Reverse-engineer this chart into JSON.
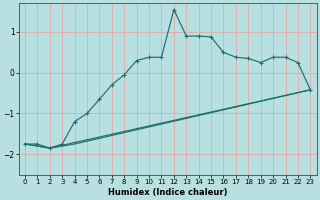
{
  "xlabel": "Humidex (Indice chaleur)",
  "bg_color": "#b8e0e0",
  "grid_color": "#e8a0a0",
  "line_color": "#1a7070",
  "xlim": [
    -0.5,
    23.5
  ],
  "ylim": [
    -2.5,
    1.7
  ],
  "x_ticks": [
    0,
    1,
    2,
    3,
    4,
    5,
    6,
    7,
    8,
    9,
    10,
    11,
    12,
    13,
    14,
    15,
    16,
    17,
    18,
    19,
    20,
    21,
    22,
    23
  ],
  "y_ticks": [
    -2,
    -1,
    0,
    1
  ],
  "wavy_x": [
    0,
    1,
    2,
    3,
    4,
    5,
    6,
    7,
    8,
    9,
    10,
    11,
    12,
    13,
    14,
    15,
    16,
    17,
    18,
    19,
    20,
    21,
    22,
    23
  ],
  "wavy_y": [
    -1.75,
    -1.75,
    -1.85,
    -1.75,
    -1.2,
    -1.0,
    -0.65,
    -0.3,
    -0.05,
    0.3,
    0.38,
    0.38,
    1.55,
    0.9,
    0.9,
    0.88,
    0.5,
    0.38,
    0.35,
    0.25,
    0.38,
    0.38,
    0.25,
    -0.42
  ],
  "line2_x": [
    0,
    2,
    23
  ],
  "line2_y": [
    -1.75,
    -1.85,
    -0.42
  ],
  "line3_x": [
    0,
    2,
    3,
    4,
    23
  ],
  "line3_y": [
    -1.75,
    -1.85,
    -1.8,
    -1.75,
    -0.42
  ]
}
